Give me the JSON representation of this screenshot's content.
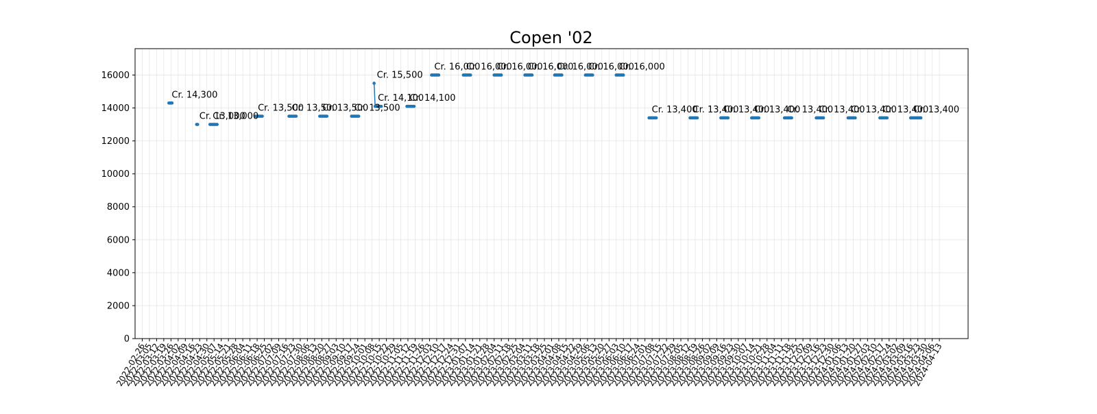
{
  "chart_data": {
    "type": "line",
    "title": "Copen '02",
    "xlabel": "",
    "ylabel": "",
    "ylim": [
      0,
      17600
    ],
    "yticks": [
      0,
      2000,
      4000,
      6000,
      8000,
      10000,
      12000,
      14000,
      16000
    ],
    "grid": true,
    "color": "#1f77b4",
    "x_ticks": [
      "2022-02-26",
      "2022-03-05",
      "2022-03-12",
      "2022-03-19",
      "2022-03-26",
      "2022-04-02",
      "2022-04-09",
      "2022-04-16",
      "2022-04-23",
      "2022-04-30",
      "2022-05-07",
      "2022-05-14",
      "2022-05-21",
      "2022-05-28",
      "2022-06-04",
      "2022-06-11",
      "2022-06-18",
      "2022-06-25",
      "2022-07-02",
      "2022-07-09",
      "2022-07-16",
      "2022-07-23",
      "2022-07-30",
      "2022-08-06",
      "2022-08-13",
      "2022-08-20",
      "2022-08-27",
      "2022-09-03",
      "2022-09-10",
      "2022-09-17",
      "2022-09-24",
      "2022-10-01",
      "2022-10-08",
      "2022-10-15",
      "2022-10-22",
      "2022-10-29",
      "2022-11-05",
      "2022-11-12",
      "2022-11-19",
      "2022-11-26",
      "2022-12-03",
      "2022-12-10",
      "2022-12-17",
      "2022-12-24",
      "2022-12-31",
      "2023-01-07",
      "2023-01-14",
      "2023-01-21",
      "2023-01-28",
      "2023-02-04",
      "2023-02-11",
      "2023-02-18",
      "2023-02-25",
      "2023-03-04",
      "2023-03-11",
      "2023-03-18",
      "2023-03-25",
      "2023-04-01",
      "2023-04-08",
      "2023-04-15",
      "2023-04-22",
      "2023-04-29",
      "2023-05-06",
      "2023-05-13",
      "2023-05-20",
      "2023-05-27",
      "2023-06-03",
      "2023-06-10",
      "2023-06-17",
      "2023-06-24",
      "2023-07-01",
      "2023-07-08",
      "2023-07-15",
      "2023-07-22",
      "2023-07-29",
      "2023-08-05",
      "2023-08-12",
      "2023-08-19",
      "2023-08-26",
      "2023-09-02",
      "2023-09-09",
      "2023-09-16",
      "2023-09-23",
      "2023-09-30",
      "2023-10-07",
      "2023-10-14",
      "2023-10-21",
      "2023-10-28",
      "2023-11-04",
      "2023-11-11",
      "2023-11-18",
      "2023-11-25",
      "2023-12-02",
      "2023-12-09",
      "2023-12-16",
      "2023-12-23",
      "2023-12-30",
      "2024-01-06",
      "2024-01-13",
      "2024-01-20",
      "2024-01-27",
      "2024-02-03",
      "2024-02-10",
      "2024-02-17",
      "2024-02-24",
      "2024-03-02",
      "2024-03-09",
      "2024-03-16",
      "2024-03-23",
      "2024-03-30",
      "2024-04-06",
      "2024-04-13"
    ],
    "segments": [
      {
        "start": "2022-03-24",
        "end": "2022-03-27",
        "value": 14300,
        "label": "Cr. 14,300"
      },
      {
        "start": "2022-04-20",
        "end": "2022-04-21",
        "value": 13000,
        "label": "Cr. 13,000"
      },
      {
        "start": "2022-05-03",
        "end": "2022-05-10",
        "value": 13000,
        "label": "Cr. 13,000"
      },
      {
        "start": "2022-06-16",
        "end": "2022-06-23",
        "value": 13500,
        "label": "Cr. 13,500"
      },
      {
        "start": "2022-07-19",
        "end": "2022-07-26",
        "value": 13500,
        "label": "Cr. 13,500"
      },
      {
        "start": "2022-08-18",
        "end": "2022-08-25",
        "value": 13500,
        "label": "Cr. 13,500"
      },
      {
        "start": "2022-09-18",
        "end": "2022-09-25",
        "value": 13500,
        "label": "Cr. 13,500"
      },
      {
        "start": "2022-10-10",
        "end": "2022-10-10",
        "value": 15500,
        "label": "Cr. 15,500"
      },
      {
        "start": "2022-10-11",
        "end": "2022-10-17",
        "value": 14100,
        "label": "Cr. 14,100"
      },
      {
        "start": "2022-11-11",
        "end": "2022-11-18",
        "value": 14100,
        "label": "Cr. 14,100"
      },
      {
        "start": "2022-12-05",
        "end": "2022-12-12",
        "value": 16000,
        "label": "Cr. 16,000"
      },
      {
        "start": "2023-01-05",
        "end": "2023-01-12",
        "value": 16000,
        "label": "Cr. 16,000"
      },
      {
        "start": "2023-02-04",
        "end": "2023-02-11",
        "value": 16000,
        "label": "Cr. 16,000"
      },
      {
        "start": "2023-03-06",
        "end": "2023-03-13",
        "value": 16000,
        "label": "Cr. 16,000"
      },
      {
        "start": "2023-04-04",
        "end": "2023-04-11",
        "value": 16000,
        "label": "Cr. 16,000"
      },
      {
        "start": "2023-05-04",
        "end": "2023-05-11",
        "value": 16000,
        "label": "Cr. 16,000"
      },
      {
        "start": "2023-06-03",
        "end": "2023-06-10",
        "value": 16000,
        "label": "Cr. 16,000"
      },
      {
        "start": "2023-07-05",
        "end": "2023-07-12",
        "value": 13400,
        "label": "Cr. 13,400"
      },
      {
        "start": "2023-08-14",
        "end": "2023-08-21",
        "value": 13400,
        "label": "Cr. 13,400"
      },
      {
        "start": "2023-09-13",
        "end": "2023-09-20",
        "value": 13400,
        "label": "Cr. 13,400"
      },
      {
        "start": "2023-10-13",
        "end": "2023-10-20",
        "value": 13400,
        "label": "Cr. 13,400"
      },
      {
        "start": "2023-11-14",
        "end": "2023-11-21",
        "value": 13400,
        "label": "Cr. 13,400"
      },
      {
        "start": "2023-12-15",
        "end": "2023-12-22",
        "value": 13400,
        "label": "Cr. 13,400"
      },
      {
        "start": "2024-01-15",
        "end": "2024-01-22",
        "value": 13400,
        "label": "Cr. 13,400"
      },
      {
        "start": "2024-02-15",
        "end": "2024-02-22",
        "value": 13400,
        "label": "Cr. 13,400"
      },
      {
        "start": "2024-03-16",
        "end": "2024-03-26",
        "value": 13400,
        "label": "Cr. 13,400"
      }
    ]
  }
}
